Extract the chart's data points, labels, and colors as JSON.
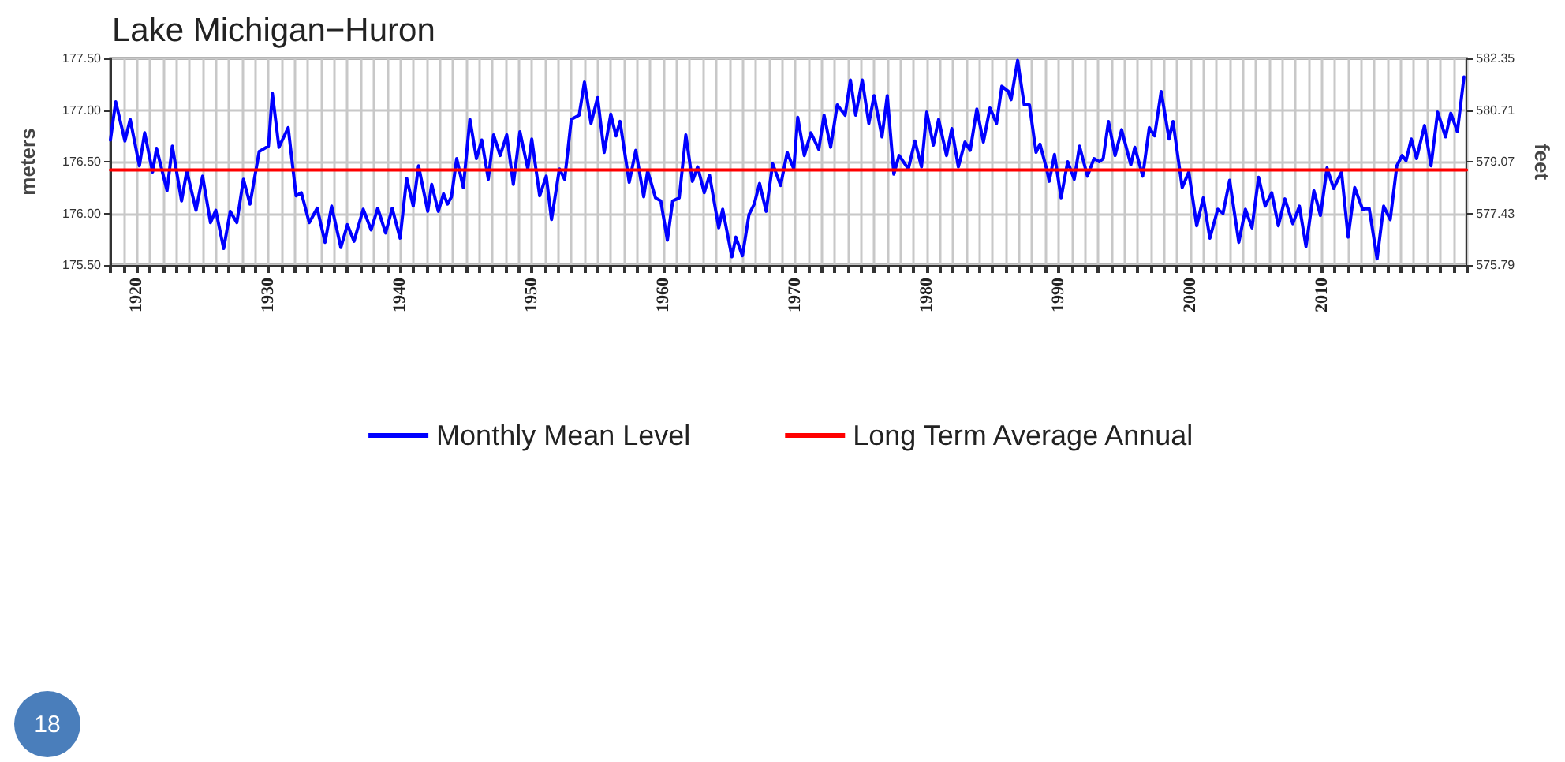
{
  "chart_data": {
    "type": "line",
    "title": "Lake Michigan−Huron",
    "ylabel": "meters",
    "y2label": "feet",
    "annotations": [
      "18"
    ],
    "xlim": [
      1918,
      2021
    ],
    "xticks": [
      {
        "value": 1918,
        "label": null
      },
      {
        "value": 1919,
        "label": null
      },
      {
        "value": 1920,
        "label": "1920"
      },
      {
        "value": 1921,
        "label": null
      },
      {
        "value": 1922,
        "label": null
      },
      {
        "value": 1923,
        "label": null
      },
      {
        "value": 1924,
        "label": null
      },
      {
        "value": 1925,
        "label": null
      },
      {
        "value": 1926,
        "label": null
      },
      {
        "value": 1927,
        "label": null
      },
      {
        "value": 1928,
        "label": null
      },
      {
        "value": 1929,
        "label": null
      },
      {
        "value": 1930,
        "label": "1930"
      },
      {
        "value": 1931,
        "label": null
      },
      {
        "value": 1932,
        "label": null
      },
      {
        "value": 1933,
        "label": null
      },
      {
        "value": 1934,
        "label": null
      },
      {
        "value": 1935,
        "label": null
      },
      {
        "value": 1936,
        "label": null
      },
      {
        "value": 1937,
        "label": null
      },
      {
        "value": 1938,
        "label": null
      },
      {
        "value": 1939,
        "label": null
      },
      {
        "value": 1940,
        "label": "1940"
      },
      {
        "value": 1941,
        "label": null
      },
      {
        "value": 1942,
        "label": null
      },
      {
        "value": 1943,
        "label": null
      },
      {
        "value": 1944,
        "label": null
      },
      {
        "value": 1945,
        "label": null
      },
      {
        "value": 1946,
        "label": null
      },
      {
        "value": 1947,
        "label": null
      },
      {
        "value": 1948,
        "label": null
      },
      {
        "value": 1949,
        "label": null
      },
      {
        "value": 1950,
        "label": "1950"
      },
      {
        "value": 1951,
        "label": null
      },
      {
        "value": 1952,
        "label": null
      },
      {
        "value": 1953,
        "label": null
      },
      {
        "value": 1954,
        "label": null
      },
      {
        "value": 1955,
        "label": null
      },
      {
        "value": 1956,
        "label": null
      },
      {
        "value": 1957,
        "label": null
      },
      {
        "value": 1958,
        "label": null
      },
      {
        "value": 1959,
        "label": null
      },
      {
        "value": 1960,
        "label": "1960"
      },
      {
        "value": 1961,
        "label": null
      },
      {
        "value": 1962,
        "label": null
      },
      {
        "value": 1963,
        "label": null
      },
      {
        "value": 1964,
        "label": null
      },
      {
        "value": 1965,
        "label": null
      },
      {
        "value": 1966,
        "label": null
      },
      {
        "value": 1967,
        "label": null
      },
      {
        "value": 1968,
        "label": null
      },
      {
        "value": 1969,
        "label": null
      },
      {
        "value": 1970,
        "label": "1970"
      },
      {
        "value": 1971,
        "label": null
      },
      {
        "value": 1972,
        "label": null
      },
      {
        "value": 1973,
        "label": null
      },
      {
        "value": 1974,
        "label": null
      },
      {
        "value": 1975,
        "label": null
      },
      {
        "value": 1976,
        "label": null
      },
      {
        "value": 1977,
        "label": null
      },
      {
        "value": 1978,
        "label": null
      },
      {
        "value": 1979,
        "label": null
      },
      {
        "value": 1980,
        "label": "1980"
      },
      {
        "value": 1981,
        "label": null
      },
      {
        "value": 1982,
        "label": null
      },
      {
        "value": 1983,
        "label": null
      },
      {
        "value": 1984,
        "label": null
      },
      {
        "value": 1985,
        "label": null
      },
      {
        "value": 1986,
        "label": null
      },
      {
        "value": 1987,
        "label": null
      },
      {
        "value": 1988,
        "label": null
      },
      {
        "value": 1989,
        "label": null
      },
      {
        "value": 1990,
        "label": "1990"
      },
      {
        "value": 1991,
        "label": null
      },
      {
        "value": 1992,
        "label": null
      },
      {
        "value": 1993,
        "label": null
      },
      {
        "value": 1994,
        "label": null
      },
      {
        "value": 1995,
        "label": null
      },
      {
        "value": 1996,
        "label": null
      },
      {
        "value": 1997,
        "label": null
      },
      {
        "value": 1998,
        "label": null
      },
      {
        "value": 1999,
        "label": null
      },
      {
        "value": 2000,
        "label": "2000"
      },
      {
        "value": 2001,
        "label": null
      },
      {
        "value": 2002,
        "label": null
      },
      {
        "value": 2003,
        "label": null
      },
      {
        "value": 2004,
        "label": null
      },
      {
        "value": 2005,
        "label": null
      },
      {
        "value": 2006,
        "label": null
      },
      {
        "value": 2007,
        "label": null
      },
      {
        "value": 2008,
        "label": null
      },
      {
        "value": 2009,
        "label": null
      },
      {
        "value": 2010,
        "label": "2010"
      },
      {
        "value": 2011,
        "label": null
      },
      {
        "value": 2012,
        "label": null
      },
      {
        "value": 2013,
        "label": null
      },
      {
        "value": 2014,
        "label": null
      },
      {
        "value": 2015,
        "label": null
      },
      {
        "value": 2016,
        "label": null
      },
      {
        "value": 2017,
        "label": null
      },
      {
        "value": 2018,
        "label": null
      },
      {
        "value": 2019,
        "label": null
      },
      {
        "value": 2020,
        "label": null
      },
      {
        "value": 2021,
        "label": null
      }
    ],
    "ylim": [
      175.5,
      177.5
    ],
    "yticks": [
      {
        "value": 175.5,
        "label": "175.50"
      },
      {
        "value": 176,
        "label": "176.00"
      },
      {
        "value": 176.5,
        "label": "176.50"
      },
      {
        "value": 177,
        "label": "177.00"
      },
      {
        "value": 177.5,
        "label": "177.50"
      }
    ],
    "y2lim": [
      575.79,
      582.35
    ],
    "y2ticks": [
      575.79,
      577.43,
      579.07,
      580.71,
      582.35
    ],
    "grid": true,
    "legend": "bottom",
    "marker": "none",
    "line_style": "solid",
    "series": [
      {
        "name": "Monthly Mean Level",
        "color": "#0000ff",
        "x": [
          1918.0,
          1918.4,
          1919.1,
          1919.5,
          1920.2,
          1920.6,
          1921.2,
          1921.5,
          1922.3,
          1922.7,
          1923.4,
          1923.8,
          1924.5,
          1925.0,
          1925.6,
          1926.0,
          1926.6,
          1927.1,
          1927.6,
          1928.1,
          1928.6,
          1929.3,
          1930.0,
          1930.3,
          1930.8,
          1931.5,
          1932.1,
          1932.5,
          1933.1,
          1933.7,
          1934.3,
          1934.8,
          1935.5,
          1936.0,
          1936.5,
          1937.2,
          1937.8,
          1938.3,
          1938.9,
          1939.4,
          1940.0,
          1940.5,
          1941.0,
          1941.4,
          1942.1,
          1942.4,
          1942.9,
          1943.3,
          1943.6,
          1943.9,
          1944.3,
          1944.8,
          1945.3,
          1945.8,
          1946.2,
          1946.7,
          1947.1,
          1947.6,
          1948.1,
          1948.6,
          1949.1,
          1949.7,
          1950.0,
          1950.6,
          1951.1,
          1951.5,
          1952.1,
          1952.5,
          1953.0,
          1953.6,
          1954.0,
          1954.5,
          1955.0,
          1955.5,
          1956.0,
          1956.4,
          1956.7,
          1957.4,
          1957.9,
          1958.5,
          1958.8,
          1959.4,
          1959.8,
          1960.3,
          1960.7,
          1961.2,
          1961.7,
          1962.2,
          1962.6,
          1963.1,
          1963.5,
          1964.2,
          1964.5,
          1965.2,
          1965.5,
          1966.0,
          1966.5,
          1966.9,
          1967.3,
          1967.8,
          1968.3,
          1968.9,
          1969.4,
          1969.9,
          1970.2,
          1970.7,
          1971.2,
          1971.8,
          1972.2,
          1972.7,
          1973.2,
          1973.8,
          1974.2,
          1974.6,
          1975.1,
          1975.6,
          1976.0,
          1976.6,
          1977.0,
          1977.5,
          1977.9,
          1978.6,
          1979.1,
          1979.6,
          1980.0,
          1980.5,
          1980.9,
          1981.5,
          1981.9,
          1982.4,
          1982.9,
          1983.3,
          1983.8,
          1984.3,
          1984.8,
          1985.3,
          1985.7,
          1986.2,
          1986.4,
          1986.9,
          1987.4,
          1987.8,
          1988.3,
          1988.6,
          1989.1,
          1989.3,
          1989.7,
          1990.2,
          1990.7,
          1991.2,
          1991.6,
          1992.2,
          1992.7,
          1993.1,
          1993.4,
          1993.8,
          1994.3,
          1994.8,
          1995.5,
          1995.8,
          1996.4,
          1996.9,
          1997.3,
          1997.8,
          1998.4,
          1998.7,
          1999.4,
          1999.9,
          2000.5,
          2001.0,
          2001.5,
          2002.1,
          2002.5,
          2003.0,
          2003.7,
          2004.2,
          2004.7,
          2005.2,
          2005.7,
          2006.2,
          2006.7,
          2007.2,
          2007.8,
          2008.3,
          2008.8,
          2009.4,
          2009.9,
          2010.4,
          2010.9,
          2011.5,
          2012.0,
          2012.5,
          2013.1,
          2013.6,
          2014.2,
          2014.7,
          2015.2,
          2015.7,
          2016.1,
          2016.4,
          2016.8,
          2017.2,
          2017.8,
          2018.3,
          2018.8,
          2019.4,
          2019.8,
          2020.3,
          2020.8
        ],
        "values": [
          176.71,
          177.08,
          176.7,
          176.91,
          176.46,
          176.78,
          176.4,
          176.63,
          176.22,
          176.65,
          176.12,
          176.41,
          176.03,
          176.36,
          175.91,
          176.03,
          175.66,
          176.02,
          175.91,
          176.33,
          176.09,
          176.6,
          176.65,
          177.16,
          176.64,
          176.83,
          176.17,
          176.2,
          175.91,
          176.05,
          175.72,
          176.07,
          175.67,
          175.89,
          175.73,
          176.04,
          175.84,
          176.05,
          175.81,
          176.05,
          175.76,
          176.34,
          176.07,
          176.46,
          176.02,
          176.28,
          176.02,
          176.19,
          176.09,
          176.16,
          176.53,
          176.25,
          176.91,
          176.53,
          176.71,
          176.33,
          176.76,
          176.56,
          176.76,
          176.28,
          176.79,
          176.43,
          176.72,
          176.17,
          176.36,
          175.94,
          176.43,
          176.33,
          176.91,
          176.95,
          177.27,
          176.87,
          177.12,
          176.59,
          176.96,
          176.75,
          176.89,
          176.3,
          176.61,
          176.16,
          176.41,
          176.15,
          176.12,
          175.74,
          176.12,
          176.15,
          176.76,
          176.31,
          176.45,
          176.2,
          176.37,
          175.86,
          176.04,
          175.58,
          175.77,
          175.59,
          175.99,
          176.09,
          176.29,
          176.02,
          176.48,
          176.27,
          176.59,
          176.43,
          176.93,
          176.56,
          176.78,
          176.62,
          176.95,
          176.64,
          177.05,
          176.95,
          177.29,
          176.95,
          177.29,
          176.87,
          177.14,
          176.74,
          177.14,
          176.38,
          176.56,
          176.43,
          176.7,
          176.45,
          176.98,
          176.66,
          176.91,
          176.56,
          176.82,
          176.45,
          176.69,
          176.61,
          177.01,
          176.69,
          177.02,
          176.87,
          177.23,
          177.18,
          177.1,
          177.48,
          177.05,
          177.05,
          176.59,
          176.67,
          176.43,
          176.31,
          176.57,
          176.15,
          176.5,
          176.33,
          176.65,
          176.36,
          176.53,
          176.5,
          176.53,
          176.89,
          176.56,
          176.81,
          176.47,
          176.64,
          176.36,
          176.83,
          176.75,
          177.18,
          176.72,
          176.89,
          176.25,
          176.4,
          175.88,
          176.15,
          175.76,
          176.04,
          176.0,
          176.32,
          175.72,
          176.04,
          175.86,
          176.35,
          176.07,
          176.2,
          175.88,
          176.14,
          175.9,
          176.07,
          175.68,
          176.22,
          175.98,
          176.44,
          176.24,
          176.4,
          175.77,
          176.25,
          176.04,
          176.05,
          175.56,
          176.07,
          175.94,
          176.46,
          176.56,
          176.51,
          176.72,
          176.53,
          176.85,
          176.46,
          176.98,
          176.74,
          176.97,
          176.79,
          177.32
        ]
      },
      {
        "name": "Long Term Average Annual",
        "color": "#ff0000",
        "x": [
          1918,
          2021
        ],
        "values": [
          176.42,
          176.42
        ]
      }
    ]
  }
}
